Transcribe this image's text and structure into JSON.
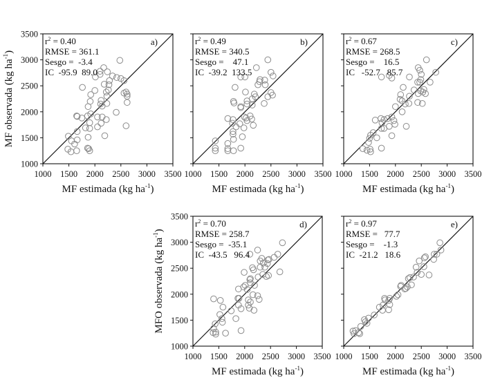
{
  "chart_data": [
    {
      "type": "scatter",
      "panel_label": "a)",
      "xlabel": {
        "main": "MF estimada (kg ha",
        "sup": "-1",
        "end": ")"
      },
      "ylabel": {
        "main": "MF observada (kg ha",
        "sup": "-1",
        "end": ")"
      },
      "xlim": [
        1000,
        3500
      ],
      "ylim": [
        1000,
        3500
      ],
      "ticks": [
        "1000",
        "1500",
        "2000",
        "2500",
        "3000",
        "3500"
      ],
      "show_y_ticklabels": true,
      "reference_line": "1:1",
      "stats": {
        "r2_label": "r",
        "r2_sup": "2",
        "r2": "= 0.40",
        "rmse": "RMSE = 361.1",
        "sesgo": "Sesgo =  -3.4",
        "ic": "IC  -95.9  89.0"
      },
      "points": [
        [
          2480,
          2990
        ],
        [
          2170,
          2850
        ],
        [
          2100,
          2780
        ],
        [
          2240,
          2770
        ],
        [
          2100,
          2720
        ],
        [
          2010,
          2670
        ],
        [
          2340,
          2690
        ],
        [
          2420,
          2660
        ],
        [
          2500,
          2640
        ],
        [
          2560,
          2600
        ],
        [
          2280,
          2600
        ],
        [
          2180,
          2530
        ],
        [
          2270,
          2520
        ],
        [
          1760,
          2470
        ],
        [
          2260,
          2420
        ],
        [
          2000,
          2410
        ],
        [
          2220,
          2380
        ],
        [
          2560,
          2360
        ],
        [
          2600,
          2380
        ],
        [
          2620,
          2340
        ],
        [
          2620,
          2300
        ],
        [
          1920,
          2330
        ],
        [
          2230,
          2300
        ],
        [
          2120,
          2220
        ],
        [
          1910,
          2200
        ],
        [
          2230,
          2160
        ],
        [
          2620,
          2180
        ],
        [
          2110,
          2150
        ],
        [
          1870,
          2100
        ],
        [
          2140,
          2110
        ],
        [
          1660,
          1910
        ],
        [
          1650,
          1920
        ],
        [
          1920,
          1960
        ],
        [
          1750,
          1880
        ],
        [
          2050,
          1900
        ],
        [
          2140,
          1900
        ],
        [
          1860,
          1920
        ],
        [
          2220,
          1850
        ],
        [
          2410,
          1990
        ],
        [
          1900,
          1790
        ],
        [
          2120,
          1780
        ],
        [
          2050,
          1710
        ],
        [
          1820,
          1690
        ],
        [
          1900,
          1680
        ],
        [
          2600,
          1730
        ],
        [
          1660,
          1620
        ],
        [
          1660,
          1460
        ],
        [
          2190,
          1540
        ],
        [
          1490,
          1530
        ],
        [
          1550,
          1440
        ],
        [
          1610,
          1380
        ],
        [
          1870,
          1510
        ],
        [
          1860,
          1300
        ],
        [
          1880,
          1290
        ],
        [
          1480,
          1280
        ],
        [
          1540,
          1230
        ],
        [
          1650,
          1250
        ],
        [
          1900,
          1250
        ]
      ]
    },
    {
      "type": "scatter",
      "panel_label": "b)",
      "xlabel": {
        "main": "MF estimada (kg ha",
        "sup": "-1",
        "end": ")"
      },
      "xlim": [
        1000,
        3500
      ],
      "ylim": [
        1000,
        3500
      ],
      "ticks": [
        "1000",
        "1500",
        "2000",
        "2500",
        "3000",
        "3500"
      ],
      "show_y_ticklabels": false,
      "reference_line": "1:1",
      "stats": {
        "r2_label": "r",
        "r2_sup": "2",
        "r2": "= 0.49",
        "rmse": "RMSE = 340.5",
        "sesgo": "Sesgo =    47.1",
        "ic": "IC  -39.2  133.5"
      },
      "points": [
        [
          2440,
          3000
        ],
        [
          2220,
          2850
        ],
        [
          2500,
          2760
        ],
        [
          2540,
          2690
        ],
        [
          1920,
          2670
        ],
        [
          2000,
          2670
        ],
        [
          2290,
          2620
        ],
        [
          2380,
          2610
        ],
        [
          2280,
          2580
        ],
        [
          2250,
          2520
        ],
        [
          2390,
          2520
        ],
        [
          1810,
          2470
        ],
        [
          2010,
          2380
        ],
        [
          2180,
          2340
        ],
        [
          2200,
          2290
        ],
        [
          2500,
          2370
        ],
        [
          2530,
          2320
        ],
        [
          2440,
          2290
        ],
        [
          2140,
          2250
        ],
        [
          2040,
          2210
        ],
        [
          1780,
          2200
        ],
        [
          1790,
          2170
        ],
        [
          2140,
          2130
        ],
        [
          2040,
          2150
        ],
        [
          1920,
          2100
        ],
        [
          1920,
          2080
        ],
        [
          2370,
          2160
        ],
        [
          1990,
          1900
        ],
        [
          2020,
          1880
        ],
        [
          2100,
          1920
        ],
        [
          1670,
          1870
        ],
        [
          1770,
          1850
        ],
        [
          2040,
          1830
        ],
        [
          2130,
          1860
        ],
        [
          1900,
          1770
        ],
        [
          1760,
          1780
        ],
        [
          1830,
          1710
        ],
        [
          2160,
          1740
        ],
        [
          1980,
          1690
        ],
        [
          1770,
          1620
        ],
        [
          1770,
          1570
        ],
        [
          1950,
          1520
        ],
        [
          1780,
          1470
        ],
        [
          1430,
          1440
        ],
        [
          1670,
          1390
        ],
        [
          1430,
          1300
        ],
        [
          1670,
          1290
        ],
        [
          1920,
          1300
        ],
        [
          1430,
          1250
        ],
        [
          1670,
          1250
        ],
        [
          1780,
          1250
        ]
      ]
    },
    {
      "type": "scatter",
      "panel_label": "c)",
      "xlabel": {
        "main": "MF estimada (kg ha",
        "sup": "-1",
        "end": ")"
      },
      "xlim": [
        1000,
        3500
      ],
      "ylim": [
        1000,
        3500
      ],
      "ticks": [
        "1000",
        "1500",
        "2000",
        "2500",
        "3000",
        "3500"
      ],
      "show_y_ticklabels": false,
      "reference_line": "1:1",
      "stats": {
        "r2_label": "r",
        "r2_sup": "2",
        "r2": "= 0.67",
        "rmse": "RMSE = 268.5",
        "sesgo": "Sesgo =    16.5",
        "ic": "IC   -52.7   85.7"
      },
      "points": [
        [
          2600,
          3000
        ],
        [
          2440,
          2850
        ],
        [
          2470,
          2800
        ],
        [
          2780,
          2760
        ],
        [
          1730,
          2670
        ],
        [
          1880,
          2700
        ],
        [
          1930,
          2650
        ],
        [
          2270,
          2670
        ],
        [
          2500,
          2720
        ],
        [
          2490,
          2620
        ],
        [
          2430,
          2570
        ],
        [
          2670,
          2570
        ],
        [
          2470,
          2570
        ],
        [
          2150,
          2470
        ],
        [
          2550,
          2430
        ],
        [
          2360,
          2420
        ],
        [
          2490,
          2400
        ],
        [
          2530,
          2380
        ],
        [
          2580,
          2350
        ],
        [
          2440,
          2350
        ],
        [
          2100,
          2330
        ],
        [
          2270,
          2300
        ],
        [
          2090,
          2240
        ],
        [
          2130,
          2210
        ],
        [
          2430,
          2180
        ],
        [
          2520,
          2160
        ],
        [
          2260,
          2160
        ],
        [
          2190,
          2150
        ],
        [
          2000,
          2100
        ],
        [
          2130,
          2000
        ],
        [
          1720,
          1870
        ],
        [
          1610,
          1840
        ],
        [
          1780,
          1850
        ],
        [
          1850,
          1870
        ],
        [
          1930,
          1900
        ],
        [
          1970,
          1830
        ],
        [
          1740,
          1790
        ],
        [
          1880,
          1720
        ],
        [
          1990,
          1760
        ],
        [
          2210,
          1720
        ],
        [
          1780,
          1680
        ],
        [
          1730,
          1680
        ],
        [
          1570,
          1600
        ],
        [
          1520,
          1550
        ],
        [
          1640,
          1500
        ],
        [
          1500,
          1490
        ],
        [
          1930,
          1540
        ],
        [
          1480,
          1410
        ],
        [
          1730,
          1300
        ],
        [
          1370,
          1290
        ],
        [
          1450,
          1260
        ],
        [
          1510,
          1280
        ],
        [
          1520,
          1230
        ]
      ]
    },
    {
      "type": "scatter",
      "panel_label": "d)",
      "xlabel": {
        "main": "MF estimada (kg ha",
        "sup": "-1",
        "end": ")"
      },
      "ylabel": {
        "main": "MFO observada (kg ha",
        "sup": "-1",
        "end": ")"
      },
      "xlim": [
        1000,
        3500
      ],
      "ylim": [
        1000,
        3500
      ],
      "ticks": [
        "1000",
        "1500",
        "2000",
        "2500",
        "3000",
        "3500"
      ],
      "show_y_ticklabels": true,
      "reference_line": "1:1",
      "stats": {
        "r2_label": "r",
        "r2_sup": "2",
        "r2": "= 0.70",
        "rmse": "RMSE = 258.7",
        "sesgo": "Sesgo =  -35.1",
        "ic": "IC  -43.5   96.4"
      },
      "points": [
        [
          2730,
          2990
        ],
        [
          2250,
          2850
        ],
        [
          2100,
          2770
        ],
        [
          2640,
          2770
        ],
        [
          2570,
          2710
        ],
        [
          2330,
          2690
        ],
        [
          2470,
          2670
        ],
        [
          2450,
          2660
        ],
        [
          2360,
          2600
        ],
        [
          2300,
          2640
        ],
        [
          2440,
          2590
        ],
        [
          2300,
          2520
        ],
        [
          2150,
          2510
        ],
        [
          2390,
          2520
        ],
        [
          2170,
          2470
        ],
        [
          2680,
          2430
        ],
        [
          1990,
          2420
        ],
        [
          2420,
          2340
        ],
        [
          2460,
          2360
        ],
        [
          2350,
          2380
        ],
        [
          2260,
          2330
        ],
        [
          2110,
          2300
        ],
        [
          2100,
          2280
        ],
        [
          2110,
          2220
        ],
        [
          2010,
          2170
        ],
        [
          1980,
          2140
        ],
        [
          2190,
          2170
        ],
        [
          1880,
          2100
        ],
        [
          2050,
          2090
        ],
        [
          2160,
          1990
        ],
        [
          2250,
          1970
        ],
        [
          2280,
          1900
        ],
        [
          2070,
          1890
        ],
        [
          1870,
          1920
        ],
        [
          1890,
          1920
        ],
        [
          1400,
          1910
        ],
        [
          1530,
          1880
        ],
        [
          2110,
          1850
        ],
        [
          1880,
          1790
        ],
        [
          2070,
          1790
        ],
        [
          1580,
          1750
        ],
        [
          2090,
          1730
        ],
        [
          1930,
          1720
        ],
        [
          1740,
          1680
        ],
        [
          2180,
          1690
        ],
        [
          1520,
          1610
        ],
        [
          1560,
          1530
        ],
        [
          1830,
          1530
        ],
        [
          1570,
          1460
        ],
        [
          1430,
          1430
        ],
        [
          1400,
          1340
        ],
        [
          1390,
          1260
        ],
        [
          1440,
          1270
        ],
        [
          1440,
          1230
        ],
        [
          1630,
          1250
        ],
        [
          1930,
          1300
        ]
      ]
    },
    {
      "type": "scatter",
      "panel_label": "e)",
      "xlabel": {
        "main": "MF estimada (kg ha",
        "sup": "-1",
        "end": ")"
      },
      "xlim": [
        1000,
        3500
      ],
      "ylim": [
        1000,
        3500
      ],
      "ticks": [
        "1000",
        "1500",
        "2000",
        "2500",
        "3000",
        "3500"
      ],
      "show_y_ticklabels": false,
      "reference_line": "1:1",
      "stats": {
        "r2_label": "r",
        "r2_sup": "2",
        "r2": "= 0.97",
        "rmse": "RMSE =   77.7",
        "sesgo": "Sesgo =    -1.3",
        "ic": "IC  -21.2   18.6"
      },
      "points": [
        [
          2860,
          2990
        ],
        [
          2880,
          2850
        ],
        [
          2750,
          2770
        ],
        [
          2800,
          2770
        ],
        [
          2740,
          2670
        ],
        [
          2560,
          2700
        ],
        [
          2580,
          2720
        ],
        [
          2460,
          2640
        ],
        [
          2550,
          2530
        ],
        [
          2400,
          2520
        ],
        [
          2500,
          2380
        ],
        [
          2650,
          2370
        ],
        [
          2280,
          2320
        ],
        [
          2250,
          2300
        ],
        [
          2350,
          2330
        ],
        [
          2420,
          2420
        ],
        [
          2110,
          2170
        ],
        [
          2310,
          2180
        ],
        [
          2200,
          2110
        ],
        [
          2180,
          2100
        ],
        [
          2230,
          2140
        ],
        [
          2050,
          1990
        ],
        [
          2020,
          1960
        ],
        [
          1890,
          1920
        ],
        [
          1790,
          1920
        ],
        [
          1800,
          1890
        ],
        [
          1870,
          1880
        ],
        [
          1890,
          1800
        ],
        [
          1760,
          1790
        ],
        [
          1690,
          1750
        ],
        [
          1870,
          1700
        ],
        [
          1750,
          1690
        ],
        [
          1590,
          1600
        ],
        [
          1480,
          1540
        ],
        [
          1400,
          1510
        ],
        [
          1450,
          1440
        ],
        [
          1420,
          1470
        ],
        [
          1330,
          1380
        ],
        [
          1290,
          1260
        ],
        [
          1310,
          1240
        ],
        [
          1230,
          1300
        ],
        [
          1180,
          1290
        ],
        [
          1200,
          1240
        ],
        [
          2100,
          2150
        ]
      ]
    }
  ],
  "colors": {
    "axis": "#111111",
    "marker": "#8a8a8a",
    "line": "#111111"
  }
}
